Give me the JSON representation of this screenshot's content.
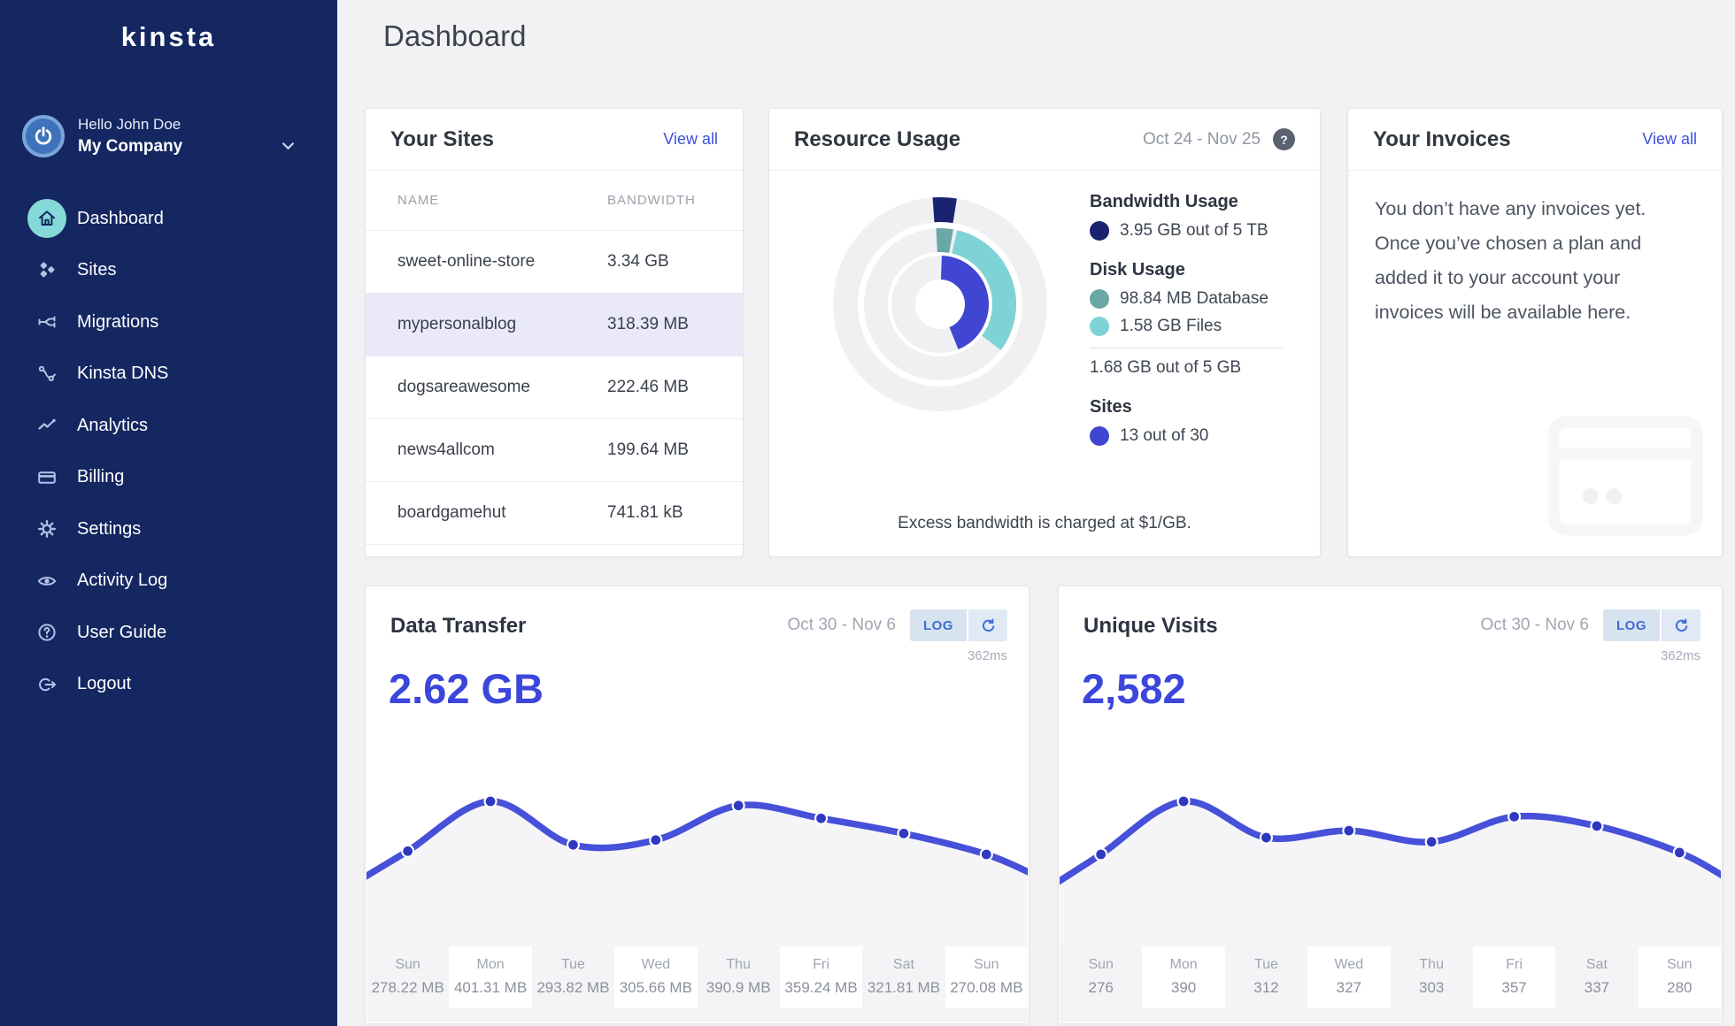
{
  "colors": {
    "sidebar_bg": "#142761",
    "accent_link": "#3d4fdd",
    "active_icon_bg": "#85d9d6",
    "highlight_row": "#e9e9f8",
    "big_number": "#3c46da"
  },
  "sidebar": {
    "logo": "kinsta",
    "user": {
      "greeting": "Hello John Doe",
      "company": "My Company"
    },
    "items": [
      {
        "label": "Dashboard",
        "icon": "home-icon",
        "active": true
      },
      {
        "label": "Sites",
        "icon": "sites-icon",
        "active": false
      },
      {
        "label": "Migrations",
        "icon": "migrations-icon",
        "active": false
      },
      {
        "label": "Kinsta DNS",
        "icon": "dns-icon",
        "active": false
      },
      {
        "label": "Analytics",
        "icon": "analytics-icon",
        "active": false
      },
      {
        "label": "Billing",
        "icon": "billing-icon",
        "active": false
      },
      {
        "label": "Settings",
        "icon": "gear-icon",
        "active": false
      },
      {
        "label": "Activity Log",
        "icon": "eye-icon",
        "active": false
      },
      {
        "label": "User Guide",
        "icon": "question-icon",
        "active": false
      },
      {
        "label": "Logout",
        "icon": "logout-icon",
        "active": false
      }
    ]
  },
  "header": {
    "title": "Dashboard"
  },
  "sites": {
    "title": "Your Sites",
    "view_all": "View all",
    "columns": [
      "NAME",
      "BANDWIDTH"
    ],
    "rows": [
      {
        "name": "sweet-online-store",
        "bandwidth": "3.34 GB",
        "highlighted": false
      },
      {
        "name": "mypersonalblog",
        "bandwidth": "318.39 MB",
        "highlighted": true
      },
      {
        "name": "dogsareawesome",
        "bandwidth": "222.46 MB",
        "highlighted": false
      },
      {
        "name": "news4allcom",
        "bandwidth": "199.64 MB",
        "highlighted": false
      },
      {
        "name": "boardgamehut",
        "bandwidth": "741.81 kB",
        "highlighted": false
      }
    ]
  },
  "resource": {
    "title": "Resource Usage",
    "date_range": "Oct 24 - Nov 25",
    "help_glyph": "?",
    "legend": {
      "bandwidth_heading": "Bandwidth Usage",
      "bandwidth_value": "3.95 GB out of 5 TB",
      "disk_heading": "Disk Usage",
      "disk_database": "98.84 MB Database",
      "disk_files": "1.58 GB Files",
      "disk_total": "1.68 GB out of 5 GB",
      "sites_heading": "Sites",
      "sites_value": "13 out of 30"
    },
    "footer": "Excess bandwidth is charged at $1/GB."
  },
  "invoices": {
    "title": "Your Invoices",
    "view_all": "View all",
    "message": "You don’t have any invoices yet. Once you’ve chosen a plan and added it to your account your invoices will be available here."
  },
  "chart_data": [
    {
      "type": "donut",
      "title": "Resource Usage",
      "track_color": "#f0f0f2",
      "rings": [
        {
          "name": "bandwidth",
          "value": "3.95 GB out of 5 TB",
          "segments": [
            {
              "label": "bandwidth-used",
              "color": "#1a2370",
              "start_deg": -4,
              "end_deg": 9
            }
          ]
        },
        {
          "name": "disk",
          "segments": [
            {
              "label": "database",
              "color": "#69a8a7",
              "start_deg": -3,
              "end_deg": 10
            },
            {
              "label": "files",
              "color": "#7ed3d7",
              "start_deg": 13,
              "end_deg": 127
            }
          ]
        },
        {
          "name": "sites",
          "value": "13 out of 30",
          "segments": [
            {
              "label": "sites-used",
              "color": "#4046d2",
              "start_deg": 2,
              "end_deg": 158
            }
          ]
        }
      ]
    },
    {
      "type": "line",
      "title": "Data Transfer",
      "total": "2.62 GB",
      "date_range": "Oct 30 - Nov 6",
      "log_button": "LOG",
      "latency": "362ms",
      "unit": "MB",
      "categories": [
        "Sun",
        "Mon",
        "Tue",
        "Wed",
        "Thu",
        "Fri",
        "Sat",
        "Sun"
      ],
      "values": [
        278.22,
        401.31,
        293.82,
        305.66,
        390.9,
        359.24,
        321.81,
        270.08
      ],
      "value_labels": [
        "278.22 MB",
        "401.31 MB",
        "293.82 MB",
        "305.66 MB",
        "390.9 MB",
        "359.24 MB",
        "321.81 MB",
        "270.08 MB"
      ],
      "line_color": "#4650d8",
      "dot_color": "#2f38c0",
      "area_color": "#f5f5f7"
    },
    {
      "type": "line",
      "title": "Unique Visits",
      "total": "2,582",
      "date_range": "Oct 30 - Nov 6",
      "log_button": "LOG",
      "latency": "362ms",
      "unit": "visits",
      "categories": [
        "Sun",
        "Mon",
        "Tue",
        "Wed",
        "Thu",
        "Fri",
        "Sat",
        "Sun"
      ],
      "values": [
        276,
        390,
        312,
        327,
        303,
        357,
        337,
        280
      ],
      "value_labels": [
        "276",
        "390",
        "312",
        "327",
        "303",
        "357",
        "337",
        "280"
      ],
      "line_color": "#4650d8",
      "dot_color": "#2f38c0",
      "area_color": "#f5f5f7"
    }
  ]
}
